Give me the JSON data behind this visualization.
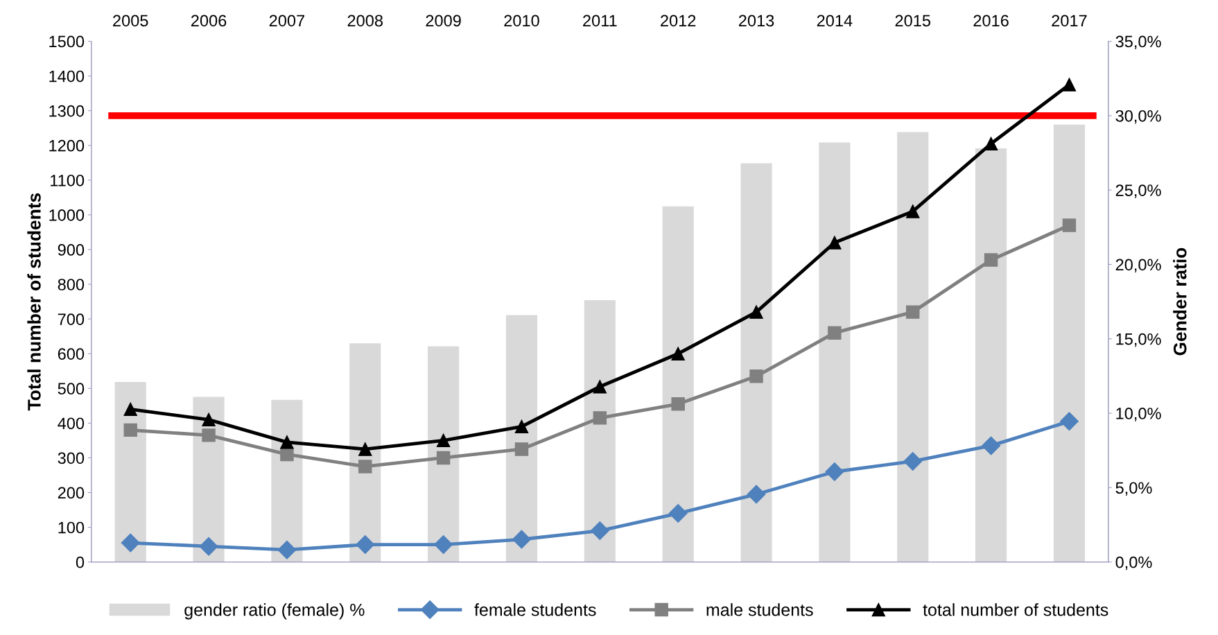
{
  "chart_data": {
    "type": "line",
    "categories": [
      "2005",
      "2006",
      "2007",
      "2008",
      "2009",
      "2010",
      "2011",
      "2012",
      "2013",
      "2014",
      "2015",
      "2016",
      "2017"
    ],
    "series": [
      {
        "name": "gender ratio (female) %",
        "type": "bar",
        "axis": "y2",
        "color": "#d9d9d9",
        "values": [
          12.1,
          11.1,
          10.9,
          14.7,
          14.5,
          16.6,
          17.6,
          23.9,
          26.8,
          28.2,
          28.9,
          27.8,
          29.4
        ]
      },
      {
        "name": "female students",
        "marker": "diamond",
        "color": "#4f81bd",
        "values": [
          55,
          45,
          35,
          50,
          50,
          65,
          90,
          140,
          195,
          260,
          290,
          335,
          405
        ]
      },
      {
        "name": "male students",
        "marker": "square",
        "color": "#808080",
        "values": [
          380,
          365,
          310,
          275,
          300,
          325,
          415,
          455,
          535,
          660,
          720,
          870,
          970
        ]
      },
      {
        "name": "total number of students",
        "marker": "triangle",
        "color": "#000000",
        "values": [
          440,
          410,
          345,
          325,
          350,
          390,
          505,
          600,
          720,
          920,
          1010,
          1205,
          1375
        ]
      }
    ],
    "ylabel": "Total number of students",
    "y2label": "Gender ratio",
    "ylim": [
      0,
      1500
    ],
    "yticks": [
      0,
      100,
      200,
      300,
      400,
      500,
      600,
      700,
      800,
      900,
      1000,
      1100,
      1200,
      1300,
      1400,
      1500
    ],
    "y2lim": [
      0,
      35
    ],
    "y2ticks": [
      {
        "value": 0,
        "label": "0,0%"
      },
      {
        "value": 5,
        "label": "5,0%"
      },
      {
        "value": 10,
        "label": "10,0%"
      },
      {
        "value": 15,
        "label": "15,0%"
      },
      {
        "value": 20,
        "label": "20,0%"
      },
      {
        "value": 25,
        "label": "25,0%"
      },
      {
        "value": 30,
        "label": "30,0%"
      },
      {
        "value": 35,
        "label": "35,0%"
      }
    ],
    "ref_lines": [
      {
        "axis": "y2",
        "value": 30,
        "color": "#ff0000"
      }
    ],
    "grid": false,
    "legend": "bottom"
  }
}
